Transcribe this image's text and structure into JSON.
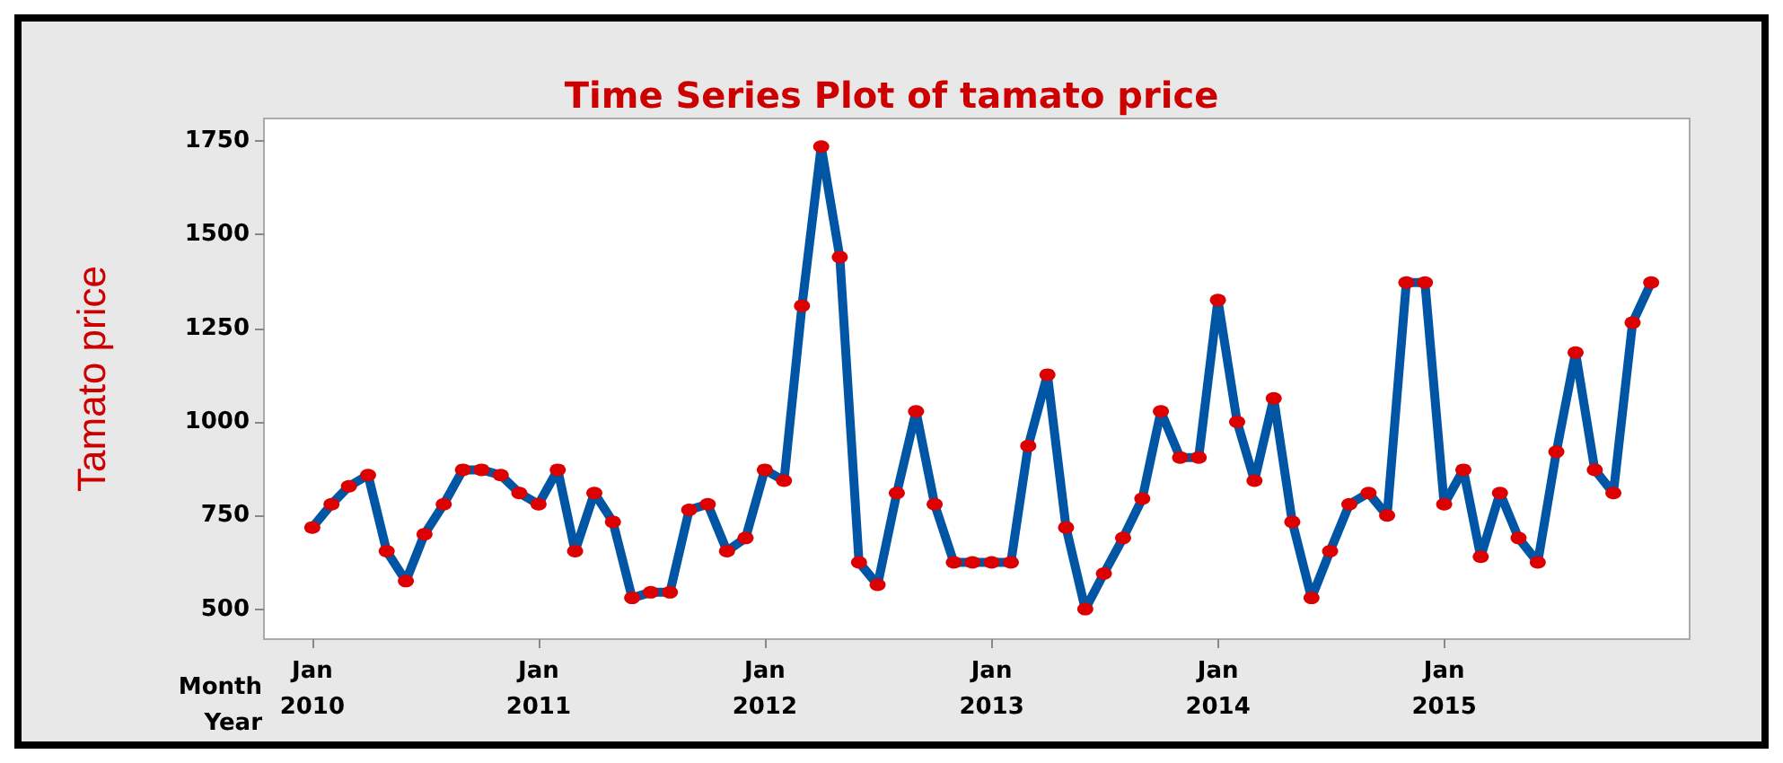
{
  "chart_data": {
    "type": "line",
    "title": "Time Series Plot of tamato price",
    "ylabel": "Tamato price",
    "xlabel": "Month\nYear",
    "x": [
      "2010-01",
      "2010-02",
      "2010-03",
      "2010-04",
      "2010-05",
      "2010-06",
      "2010-07",
      "2010-08",
      "2010-09",
      "2010-10",
      "2010-11",
      "2010-12",
      "2011-01",
      "2011-02",
      "2011-03",
      "2011-04",
      "2011-05",
      "2011-06",
      "2011-07",
      "2011-08",
      "2011-09",
      "2011-10",
      "2011-11",
      "2011-12",
      "2012-01",
      "2012-02",
      "2012-03",
      "2012-04",
      "2012-05",
      "2012-06",
      "2012-07",
      "2012-08",
      "2012-09",
      "2012-10",
      "2012-11",
      "2012-12",
      "2013-01",
      "2013-02",
      "2013-03",
      "2013-04",
      "2013-05",
      "2013-06",
      "2013-07",
      "2013-08",
      "2013-09",
      "2013-10",
      "2013-11",
      "2013-12",
      "2014-01",
      "2014-02",
      "2014-03",
      "2014-04",
      "2014-05",
      "2014-06",
      "2014-07",
      "2014-08",
      "2014-09",
      "2014-10",
      "2014-11",
      "2014-12",
      "2015-01",
      "2015-02",
      "2015-03",
      "2015-04",
      "2015-05",
      "2015-06",
      "2015-07",
      "2015-08",
      "2015-09",
      "2015-10",
      "2015-11",
      "2015-12"
    ],
    "series": [
      {
        "color": "#0055a5",
        "values": [
          718,
          780,
          828,
          858,
          655,
          575,
          700,
          780,
          872,
          872,
          858,
          810,
          780,
          872,
          655,
          810,
          733,
          530,
          545,
          545,
          765,
          780,
          655,
          690,
          872,
          843,
          1310,
          1735,
          1440,
          625,
          565,
          810,
          1028,
          780,
          625,
          625,
          625,
          625,
          936,
          1126,
          718,
          500,
          595,
          690,
          795,
          1028,
          905,
          905,
          1325,
          1000,
          843,
          1063,
          733,
          530,
          655,
          780,
          810,
          750,
          1372,
          1372,
          780,
          872,
          640,
          810,
          690,
          625,
          920,
          1185,
          872,
          810,
          1265,
          1372
        ],
        "colors": [
          "#dd0000",
          "#dd0000",
          "#dd0000",
          "#dd0000",
          "#dd0000",
          "#dd0000",
          "#dd0000",
          "#dd0000",
          "#dd0000",
          "#dd0000",
          "#dd0000",
          "#dd0000",
          "#dd0000",
          "#dd0000",
          "#dd0000",
          "#dd0000",
          "#dd0000",
          "#dd0000",
          "#dd0000",
          "#dd0000",
          "#dd0000",
          "#dd0000",
          "#dd0000",
          "#dd0000",
          "#dd0000",
          "#dd0000",
          "#dd0000",
          "#dd0000",
          "#dd0000",
          "#dd0000",
          "#dd0000",
          "#dd0000",
          "#dd0000",
          "#dd0000",
          "#dd0000",
          "#dd0000",
          "#dd0000",
          "#dd0000",
          "#dd0000",
          "#dd0000",
          "#dd0000",
          "#dd0000",
          "#dd0000",
          "#dd0000",
          "#dd0000",
          "#dd0000",
          "#dd0000",
          "#dd0000",
          "#dd0000",
          "#dd0000",
          "#dd0000",
          "#dd0000",
          "#dd0000",
          "#dd0000",
          "#dd0000",
          "#dd0000",
          "#dd0000",
          "#dd0000",
          "#dd0000",
          "#dd0000",
          "#dd0000",
          "#dd0000",
          "#dd0000",
          "#dd0000",
          "#dd0000",
          "#dd0000",
          "#dd0000",
          "#dd0000",
          "#dd0000",
          "#dd0000",
          "#dd0000",
          "#dd0000"
        ]
      }
    ],
    "xlim": [
      "2009-10-15",
      "2016-02-01"
    ],
    "xticks": [
      {
        "value": "2010-01",
        "label": "Jan\n2010"
      },
      {
        "value": "2011-01",
        "label": "Jan\n2011"
      },
      {
        "value": "2012-01",
        "label": "Jan\n2012"
      },
      {
        "value": "2013-01",
        "label": "Jan\n2013"
      },
      {
        "value": "2014-01",
        "label": "Jan\n2014"
      },
      {
        "value": "2015-01",
        "label": "Jan\n2015"
      }
    ],
    "ylim": [
      420,
      1810
    ],
    "yticks": [
      500,
      750,
      1000,
      1250,
      1500,
      1750
    ],
    "grid": false,
    "marker": "circle",
    "line_style": "solid"
  }
}
